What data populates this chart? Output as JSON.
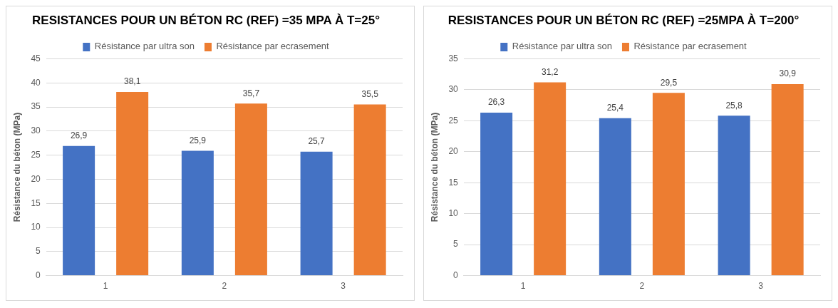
{
  "chart_data": [
    {
      "type": "bar",
      "title": "RESISTANCES POUR UN BÉTON RC (REF) =35 MPA À T=25°",
      "ylabel": "Résistance du béton (MPa)",
      "categories": [
        "1",
        "2",
        "3"
      ],
      "series": [
        {
          "name": "Résistance par ultra son",
          "color": "#4472c4",
          "values": [
            26.9,
            25.9,
            25.7
          ],
          "value_labels": [
            "26,9",
            "25,9",
            "25,7"
          ]
        },
        {
          "name": "Résistance par ecrasement",
          "color": "#ed7d31",
          "values": [
            38.1,
            35.7,
            35.5
          ],
          "value_labels": [
            "38,1",
            "35,7",
            "35,5"
          ]
        }
      ],
      "ylim": [
        0,
        45
      ],
      "yticks": [
        0,
        5,
        10,
        15,
        20,
        25,
        30,
        35,
        40,
        45
      ],
      "grid": "y",
      "legend": "top"
    },
    {
      "type": "bar",
      "title": "RESISTANCES POUR UN BÉTON RC (REF) =25MPA À T=200°",
      "ylabel": "Résistance du béton (MPa)",
      "categories": [
        "1",
        "2",
        "3"
      ],
      "series": [
        {
          "name": "Résistance par ultra son",
          "color": "#4472c4",
          "values": [
            26.3,
            25.4,
            25.8
          ],
          "value_labels": [
            "26,3",
            "25,4",
            "25,8"
          ]
        },
        {
          "name": "Résistance par ecrasement",
          "color": "#ed7d31",
          "values": [
            31.2,
            29.5,
            30.9
          ],
          "value_labels": [
            "31,2",
            "29,5",
            "30,9"
          ]
        }
      ],
      "ylim": [
        0,
        35
      ],
      "yticks": [
        0,
        5,
        10,
        15,
        20,
        25,
        30,
        35
      ],
      "grid": "y",
      "legend": "top"
    }
  ]
}
